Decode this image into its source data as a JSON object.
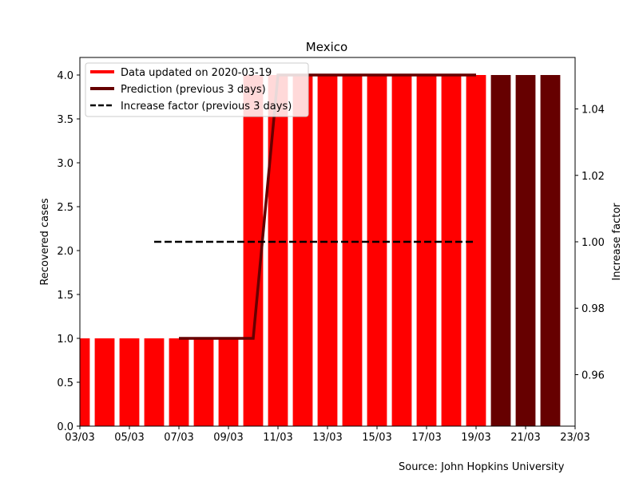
{
  "chart_data": {
    "type": "bar",
    "title": "Mexico",
    "ylabel": "Recovered cases",
    "ylabel_right": "Increase factor",
    "xlabel": "",
    "source_note": "Source: John Hopkins University",
    "xlim": [
      "03/03",
      "23/03"
    ],
    "ylim": [
      0,
      4.2
    ],
    "ylim_right": [
      0.9445,
      1.0555
    ],
    "x_ticks": [
      "03/03",
      "05/03",
      "07/03",
      "09/03",
      "11/03",
      "13/03",
      "15/03",
      "17/03",
      "19/03",
      "21/03",
      "23/03"
    ],
    "y_ticks": [
      "0.0",
      "0.5",
      "1.0",
      "1.5",
      "2.0",
      "2.5",
      "3.0",
      "3.5",
      "4.0"
    ],
    "y_ticks_right": [
      "0.96",
      "0.98",
      "1.00",
      "1.02",
      "1.04"
    ],
    "legend_position": "top-left",
    "legend": [
      {
        "label": "Data updated on 2020-03-19",
        "color": "#ff0000",
        "style": "solid"
      },
      {
        "label": "Prediction (previous 3 days)",
        "color": "#660000",
        "style": "solid"
      },
      {
        "label": "Increase factor (previous 3 days)",
        "color": "#000000",
        "style": "dashed"
      }
    ],
    "series": [
      {
        "name": "Data updated on 2020-03-19",
        "color": "#ff0000",
        "type": "bar",
        "x": [
          "03/03",
          "04/03",
          "05/03",
          "06/03",
          "07/03",
          "08/03",
          "09/03",
          "10/03",
          "11/03",
          "12/03",
          "13/03",
          "14/03",
          "15/03",
          "16/03",
          "17/03",
          "18/03",
          "19/03"
        ],
        "values": [
          1,
          1,
          1,
          1,
          1,
          1,
          1,
          4,
          4,
          4,
          4,
          4,
          4,
          4,
          4,
          4,
          4
        ]
      },
      {
        "name": "Prediction (previous 3 days)",
        "color": "#660000",
        "type": "bar",
        "x": [
          "20/03",
          "21/03",
          "22/03"
        ],
        "values": [
          4,
          4,
          4
        ]
      },
      {
        "name": "Prediction (previous 3 days)",
        "color": "#660000",
        "type": "line",
        "x": [
          "07/03",
          "08/03",
          "09/03",
          "10/03",
          "11/03",
          "12/03",
          "13/03",
          "14/03",
          "15/03",
          "16/03",
          "17/03",
          "18/03",
          "19/03"
        ],
        "values": [
          1,
          1,
          1,
          1,
          4,
          4,
          4,
          4,
          4,
          4,
          4,
          4,
          4
        ]
      },
      {
        "name": "Increase factor (previous 3 days)",
        "color": "#000000",
        "type": "line",
        "axis": "right",
        "style": "dashed",
        "x": [
          "06/03",
          "19/03"
        ],
        "values": [
          1.0,
          1.0
        ]
      }
    ]
  }
}
